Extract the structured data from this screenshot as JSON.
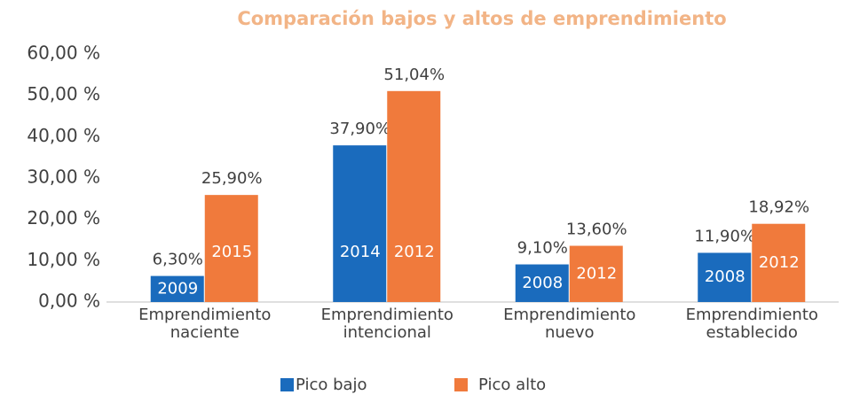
{
  "chart_data": {
    "type": "bar",
    "title": "Comparación bajos y altos de emprendimiento",
    "categories": [
      [
        "Emprendimiento",
        "naciente"
      ],
      [
        "Emprendimiento",
        "intencional"
      ],
      [
        "Emprendimiento",
        "nuevo"
      ],
      [
        "Emprendimiento",
        "establecido"
      ]
    ],
    "series": [
      {
        "name": "Pico bajo",
        "color": "#1a6bbd",
        "values": [
          6.3,
          37.9,
          9.1,
          11.9
        ],
        "value_labels": [
          "6,30%",
          "37,90%",
          "9,10%",
          "11,90%"
        ],
        "inner_labels": [
          "2009",
          "2014",
          "2008",
          "2008"
        ]
      },
      {
        "name": "Pico alto",
        "color": "#f07a3c",
        "values": [
          25.9,
          51.04,
          13.6,
          18.92
        ],
        "value_labels": [
          "25,90%",
          "51,04%",
          "13,60%",
          "18,92%"
        ],
        "inner_labels": [
          "2015",
          "2012",
          "2012",
          "2012"
        ]
      }
    ],
    "ylim": [
      0,
      60
    ],
    "yticks": [
      {
        "value": 0,
        "label": "0,00 %"
      },
      {
        "value": 10,
        "label": "10,00 %"
      },
      {
        "value": 20,
        "label": "20,00 %"
      },
      {
        "value": 30,
        "label": "30,00 %"
      },
      {
        "value": 40,
        "label": "40,00 %"
      },
      {
        "value": 50,
        "label": "50,00 %"
      },
      {
        "value": 60,
        "label": "60,00 %"
      }
    ],
    "legend": "bottom"
  }
}
